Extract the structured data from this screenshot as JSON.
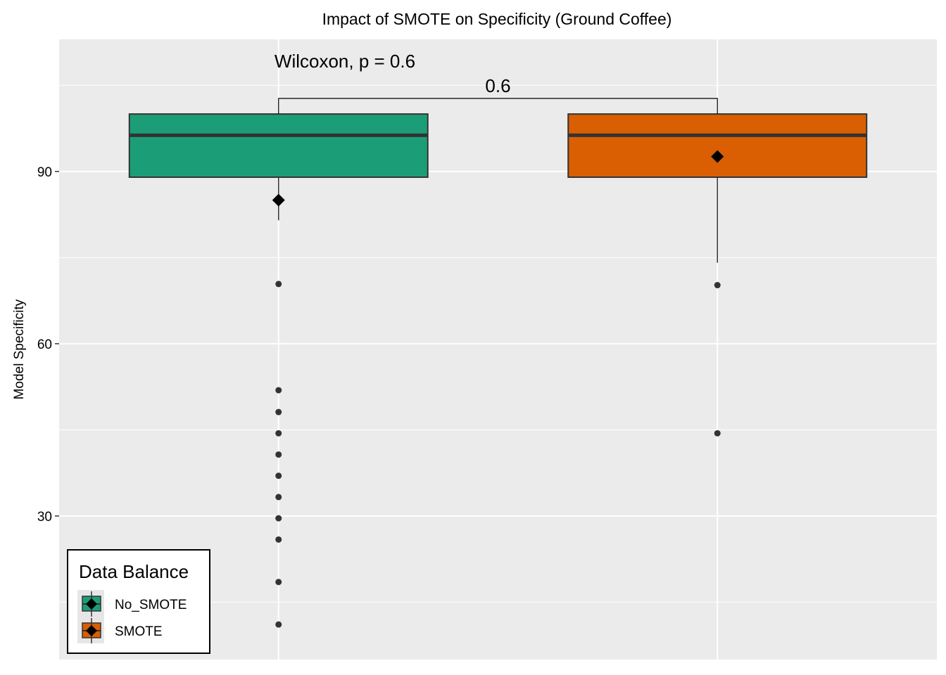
{
  "chart_data": {
    "type": "box",
    "title": "Impact of SMOTE on Specificity (Ground Coffee)",
    "xlabel": "",
    "ylabel": "Model Specificity",
    "ylim": [
      5,
      113
    ],
    "yticks": [
      30,
      60,
      90
    ],
    "grid": true,
    "legend": {
      "title": "Data Balance",
      "position": "bottom-left",
      "entries": [
        "No_SMOTE",
        "SMOTE"
      ]
    },
    "annotations": {
      "test_label": "Wilcoxon, p = 0.6",
      "bracket_label": "0.6"
    },
    "series": [
      {
        "name": "No_SMOTE",
        "color": "#1b9e77",
        "q1": 89,
        "median": 96.3,
        "q3": 100,
        "whisker_low": 81.5,
        "whisker_high": 100,
        "mean": 85,
        "outliers": [
          70.4,
          51.9,
          48.1,
          44.4,
          40.7,
          37.0,
          33.3,
          29.6,
          25.9,
          18.5,
          11.1
        ]
      },
      {
        "name": "SMOTE",
        "color": "#d95f02",
        "q1": 89,
        "median": 96.3,
        "q3": 100,
        "whisker_low": 74.1,
        "whisker_high": 100,
        "mean": 92.6,
        "outliers": [
          70.2,
          44.4
        ]
      }
    ]
  }
}
